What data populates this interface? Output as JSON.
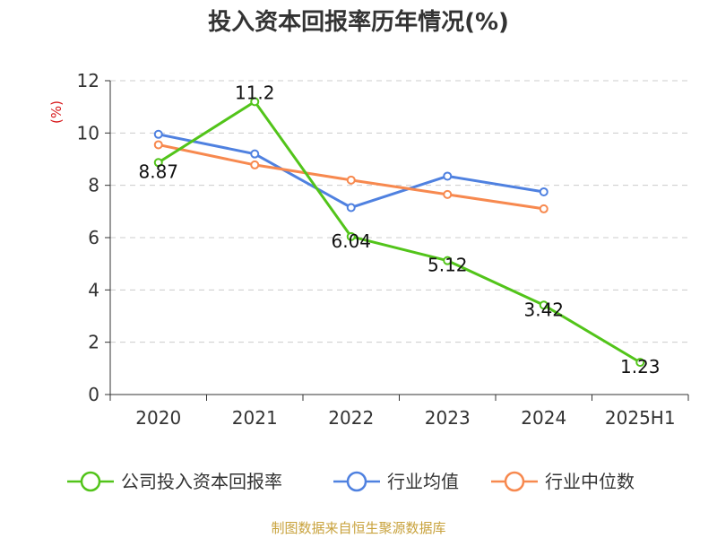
{
  "chart_data": {
    "type": "line",
    "title": "投入资本回报率历年情况(%)",
    "ylabel": "(%)",
    "xlabel": "",
    "categories": [
      "2020",
      "2021",
      "2022",
      "2023",
      "2024",
      "2025H1"
    ],
    "ylim": [
      0,
      12
    ],
    "yticks": [
      0,
      2,
      4,
      6,
      8,
      10,
      12
    ],
    "grid": true,
    "legend_position": "bottom",
    "series": [
      {
        "name": "公司投入资本回报率",
        "color": "#52c41a",
        "values": [
          8.87,
          11.2,
          6.04,
          5.12,
          3.42,
          1.23
        ],
        "labels": [
          "8.87",
          "11.2",
          "6.04",
          "5.12",
          "3.42",
          "1.23"
        ]
      },
      {
        "name": "行业均值",
        "color": "#4f81e0",
        "values": [
          9.95,
          9.2,
          7.15,
          8.35,
          7.75,
          null
        ]
      },
      {
        "name": "行业中位数",
        "color": "#f7894f",
        "values": [
          9.55,
          8.78,
          8.2,
          7.65,
          7.1,
          null
        ]
      }
    ]
  },
  "source_note": "制图数据来自恒生聚源数据库"
}
